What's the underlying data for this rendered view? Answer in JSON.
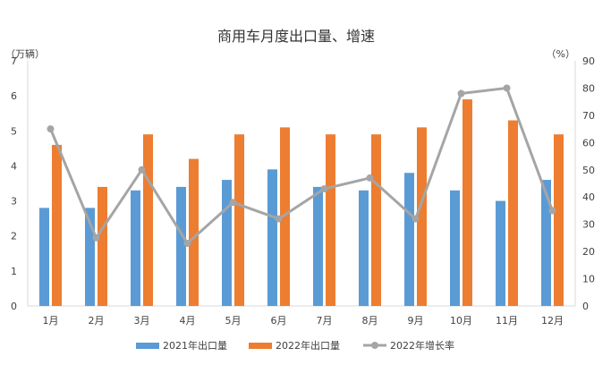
{
  "chart_data": {
    "type": "bar",
    "title": "商用车月度出口量、增速",
    "y_left_unit": "（万辆）",
    "y_right_unit": "（%）",
    "categories": [
      "1月",
      "2月",
      "3月",
      "4月",
      "5月",
      "6月",
      "7月",
      "8月",
      "9月",
      "10月",
      "11月",
      "12月"
    ],
    "y_left_ticks": [
      "0",
      "1",
      "2",
      "3",
      "4",
      "5",
      "6",
      "7"
    ],
    "y_right_ticks": [
      "0",
      "10",
      "20",
      "30",
      "40",
      "50",
      "60",
      "70",
      "80",
      "90"
    ],
    "ylim_left": [
      0,
      7
    ],
    "ylim_right": [
      0,
      90
    ],
    "series": [
      {
        "name": "2021年出口量",
        "kind": "bar",
        "axis": "left",
        "color": "#5B9BD5",
        "values": [
          2.8,
          2.8,
          3.3,
          3.4,
          3.6,
          3.9,
          3.4,
          3.3,
          3.8,
          3.3,
          3.0,
          3.6
        ]
      },
      {
        "name": "2022年出口量",
        "kind": "bar",
        "axis": "left",
        "color": "#ED7D31",
        "values": [
          4.6,
          3.4,
          4.9,
          4.2,
          4.9,
          5.1,
          4.9,
          4.9,
          5.1,
          5.9,
          5.3,
          4.9
        ]
      },
      {
        "name": "2022年增长率",
        "kind": "line",
        "axis": "right",
        "color": "#A5A5A5",
        "values": [
          65,
          25,
          50,
          23,
          38,
          32,
          43,
          47,
          32,
          78,
          80,
          35
        ]
      }
    ],
    "grid": false,
    "legend_position": "bottom"
  }
}
